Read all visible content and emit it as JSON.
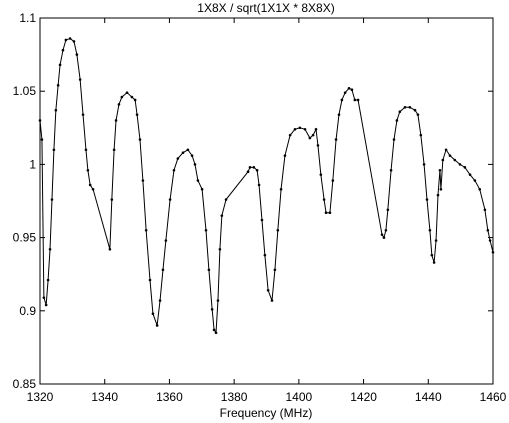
{
  "chart_data": {
    "type": "line",
    "title": "1X8X / sqrt(1X1X * 8X8X)",
    "xlabel": "Frequency (MHz)",
    "color": "#000000",
    "markers": true,
    "grid": false,
    "xlim": [
      1320,
      1460
    ],
    "ylim": [
      0.85,
      1.1
    ],
    "xticks": [
      1320,
      1340,
      1360,
      1380,
      1400,
      1420,
      1440,
      1460
    ],
    "yticks": [
      0.85,
      0.9,
      0.95,
      1,
      1.05,
      1.1
    ],
    "x": [
      1320.0,
      1320.6,
      1321.2,
      1321.9,
      1322.5,
      1323.1,
      1323.7,
      1324.3,
      1324.9,
      1325.6,
      1326.2,
      1327.1,
      1328.0,
      1329.3,
      1330.5,
      1331.4,
      1332.4,
      1333.3,
      1334.2,
      1334.8,
      1335.5,
      1336.4,
      1341.6,
      1342.2,
      1342.9,
      1343.5,
      1344.4,
      1345.3,
      1346.9,
      1348.4,
      1349.4,
      1350.0,
      1350.9,
      1351.8,
      1352.8,
      1354.0,
      1354.9,
      1356.2,
      1357.1,
      1358.0,
      1358.9,
      1360.2,
      1361.4,
      1362.6,
      1364.2,
      1365.7,
      1367.0,
      1367.9,
      1368.8,
      1370.1,
      1371.3,
      1372.2,
      1373.2,
      1373.8,
      1374.4,
      1375.0,
      1375.6,
      1376.2,
      1377.5,
      1384.3,
      1384.9,
      1386.1,
      1387.1,
      1387.7,
      1388.6,
      1389.5,
      1390.5,
      1391.7,
      1392.6,
      1393.5,
      1394.5,
      1395.7,
      1397.3,
      1398.8,
      1400.3,
      1401.9,
      1403.4,
      1404.4,
      1405.3,
      1405.9,
      1406.8,
      1407.8,
      1408.4,
      1409.6,
      1410.5,
      1411.5,
      1412.4,
      1413.3,
      1414.3,
      1415.5,
      1416.4,
      1417.3,
      1418.3,
      1425.7,
      1426.3,
      1426.9,
      1427.5,
      1428.5,
      1429.4,
      1430.3,
      1431.2,
      1432.8,
      1434.3,
      1435.9,
      1436.8,
      1437.7,
      1438.7,
      1439.6,
      1440.5,
      1441.1,
      1441.8,
      1442.4,
      1443.0,
      1443.6,
      1443.9,
      1444.5,
      1445.5,
      1446.7,
      1448.2,
      1449.8,
      1451.3,
      1452.9,
      1454.4,
      1455.9,
      1457.5,
      1458.4,
      1459.1,
      1460.0
    ],
    "values": [
      1.03,
      1.017,
      0.909,
      0.904,
      0.921,
      0.942,
      0.976,
      1.01,
      1.037,
      1.054,
      1.068,
      1.078,
      1.085,
      1.086,
      1.084,
      1.075,
      1.058,
      1.034,
      1.01,
      0.996,
      0.986,
      0.983,
      0.942,
      0.976,
      1.01,
      1.03,
      1.041,
      1.046,
      1.049,
      1.046,
      1.044,
      1.034,
      1.017,
      0.989,
      0.955,
      0.921,
      0.898,
      0.89,
      0.907,
      0.928,
      0.948,
      0.976,
      0.996,
      1.004,
      1.008,
      1.01,
      1.006,
      1.0,
      0.989,
      0.983,
      0.955,
      0.928,
      0.901,
      0.887,
      0.885,
      0.907,
      0.942,
      0.965,
      0.976,
      0.995,
      0.998,
      0.998,
      0.996,
      0.986,
      0.962,
      0.938,
      0.914,
      0.907,
      0.928,
      0.955,
      0.983,
      1.006,
      1.02,
      1.024,
      1.025,
      1.024,
      1.018,
      1.02,
      1.024,
      1.013,
      0.993,
      0.976,
      0.967,
      0.967,
      0.989,
      1.017,
      1.034,
      1.044,
      1.049,
      1.052,
      1.051,
      1.044,
      1.044,
      0.952,
      0.95,
      0.955,
      0.969,
      0.996,
      1.017,
      1.03,
      1.036,
      1.039,
      1.039,
      1.037,
      1.034,
      1.02,
      1.0,
      0.976,
      0.955,
      0.938,
      0.933,
      0.948,
      0.979,
      0.996,
      0.983,
      1.003,
      1.01,
      1.006,
      1.003,
      1.0,
      0.998,
      0.993,
      0.989,
      0.983,
      0.969,
      0.955,
      0.948,
      0.94
    ]
  }
}
